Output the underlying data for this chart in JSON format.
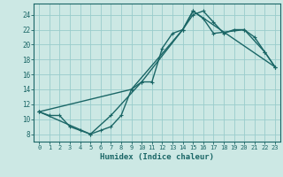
{
  "title": "",
  "xlabel": "Humidex (Indice chaleur)",
  "ylabel": "",
  "background_color": "#cce8e4",
  "grid_color": "#99cccc",
  "line_color": "#1a6666",
  "xlim": [
    -0.5,
    23.5
  ],
  "ylim": [
    7,
    25.5
  ],
  "xticks": [
    0,
    1,
    2,
    3,
    4,
    5,
    6,
    7,
    8,
    9,
    10,
    11,
    12,
    13,
    14,
    15,
    16,
    17,
    18,
    19,
    20,
    21,
    22,
    23
  ],
  "yticks": [
    8,
    10,
    12,
    14,
    16,
    18,
    20,
    22,
    24
  ],
  "line1_x": [
    0,
    1,
    2,
    3,
    4,
    5,
    6,
    7,
    8,
    9,
    10,
    11,
    12,
    13,
    14,
    15,
    16,
    17,
    18,
    19,
    20,
    21,
    22,
    23
  ],
  "line1_y": [
    11,
    10.5,
    10.5,
    9,
    8.5,
    8,
    8.5,
    9,
    10.5,
    14,
    15,
    15,
    19.5,
    21.5,
    22,
    24,
    24.5,
    23,
    21.5,
    22,
    22,
    21,
    19,
    17
  ],
  "line2_x": [
    0,
    5,
    7,
    10,
    14,
    15,
    16,
    17,
    20,
    22,
    23
  ],
  "line2_y": [
    11,
    8,
    10.5,
    15,
    22,
    24.5,
    23.5,
    21.5,
    22,
    19,
    17
  ],
  "line3_x": [
    0,
    9,
    14,
    15,
    23
  ],
  "line3_y": [
    11,
    14,
    22,
    24.5,
    17
  ]
}
